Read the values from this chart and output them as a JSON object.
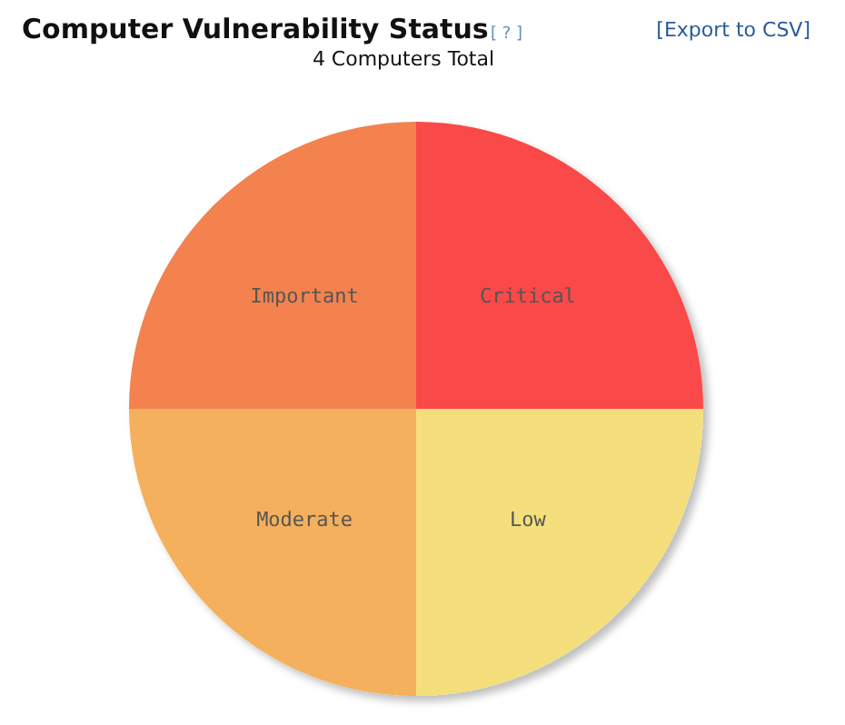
{
  "chart_data": {
    "type": "pie",
    "title": "Computer Vulnerability Status",
    "subtitle": "4 Computers Total",
    "annotations": [
      "[ ? ]",
      "[Export to CSV]"
    ],
    "categories": [
      "Critical",
      "Low",
      "Moderate",
      "Important"
    ],
    "values": [
      25,
      25,
      25,
      25
    ],
    "colors": [
      "#fa4a4a",
      "#f4df7c",
      "#f4b05c",
      "#f3824f"
    ]
  }
}
